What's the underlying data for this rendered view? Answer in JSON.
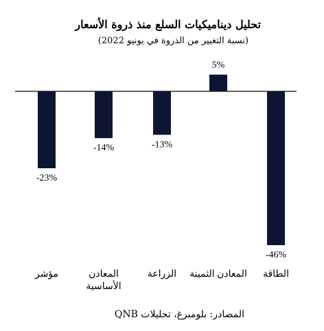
{
  "chart_data": {
    "type": "bar",
    "title": "تحليل ديناميكيات السلع منذ ذروة الأسعار",
    "subtitle": "(نسبة التغيير من الذروة في يونيو 2022)",
    "categories": [
      "الطاقة",
      "المعادن الثمينة",
      "الزراعة",
      "المعادن الأساسية",
      "مؤشر"
    ],
    "category_lines": [
      [
        "الطاقة"
      ],
      [
        "المعادن الثمينة"
      ],
      [
        "الزراعة"
      ],
      [
        "المعادن",
        "الأساسية"
      ],
      [
        "مؤشر"
      ]
    ],
    "values": [
      -46,
      5,
      -13,
      -14,
      -23
    ],
    "data_labels": [
      "-46%",
      "5%",
      "-13%",
      "-14%",
      "-23%"
    ],
    "category_order": "right-to-left",
    "bar_color": "#0d1533",
    "axis_color": "#000000",
    "grid": false,
    "legend": "none",
    "ylim": [
      -46,
      5
    ],
    "source": "المصادر: بلومبرغ، تحليلات QNB"
  }
}
